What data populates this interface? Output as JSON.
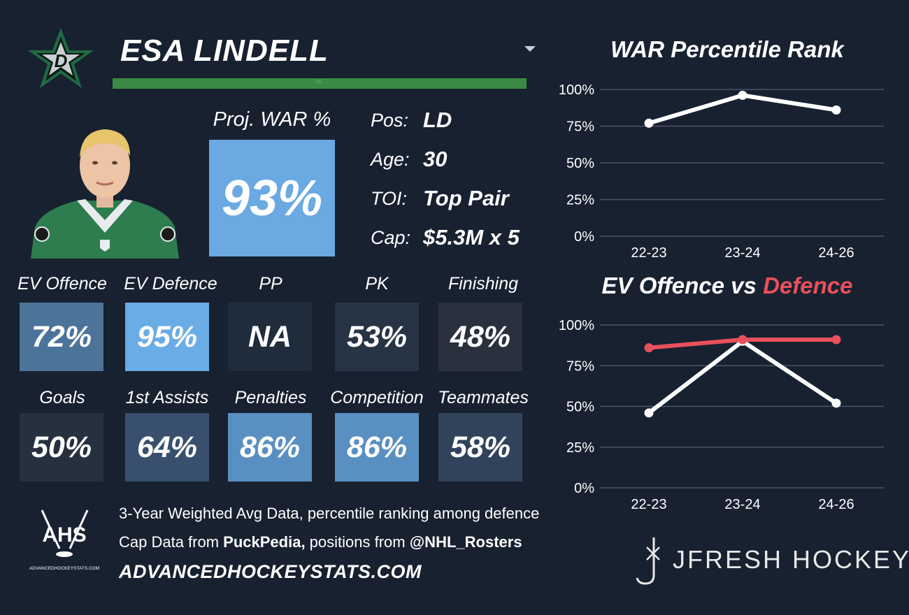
{
  "player": {
    "name": "ESA LINDELL",
    "bar_label": "SEL",
    "proj_war_label": "Proj. WAR %",
    "proj_war_value": "93%",
    "info": [
      {
        "label": "Pos:",
        "value": "LD"
      },
      {
        "label": "Age:",
        "value": "30"
      },
      {
        "label": "TOI:",
        "value": "Top Pair"
      },
      {
        "label": "Cap:",
        "value": "$5.3M x 5"
      }
    ]
  },
  "stats_row1": [
    {
      "label": "EV Offence",
      "value": "72%",
      "color": "#4c7399"
    },
    {
      "label": "EV Defence",
      "value": "95%",
      "color": "#6aace6"
    },
    {
      "label": "PP",
      "value": "NA",
      "color": "#1f2c3c"
    },
    {
      "label": "PK",
      "value": "53%",
      "color": "#273445"
    },
    {
      "label": "Finishing",
      "value": "48%",
      "color": "#2a303e"
    }
  ],
  "stats_row2": [
    {
      "label": "Goals",
      "value": "50%",
      "color": "#26303f"
    },
    {
      "label": "1st Assists",
      "value": "64%",
      "color": "#38506d"
    },
    {
      "label": "Penalties",
      "value": "86%",
      "color": "#5a8fc2"
    },
    {
      "label": "Competition",
      "value": "86%",
      "color": "#5a8fc2"
    },
    {
      "label": "Teammates",
      "value": "58%",
      "color": "#30435b"
    }
  ],
  "footer": {
    "line1": "3-Year Weighted Avg Data, percentile ranking among defence",
    "line2_prefix": "Cap Data from ",
    "line2_bold1": "PuckPedia,",
    "line2_mid": " positions from ",
    "line2_bold2": "@NHL_Rosters",
    "site": "ADVANCEDHOCKEYSTATS.COM",
    "ahs_text": "AHS",
    "ahs_small": "ADVANCEDHOCKEYSTATS.COM",
    "brand": "JFRESH HOCKEY"
  },
  "colors": {
    "background": "#182130",
    "name_bar": "#3a8a45",
    "war_box": "#6aa9e1",
    "defence_line": "#e8505b",
    "offence_line": "#ffffff",
    "grid": "#4a5568"
  },
  "chart_data": [
    {
      "type": "line",
      "title": "WAR Percentile Rank",
      "categories": [
        "22-23",
        "23-24",
        "24-26"
      ],
      "series": [
        {
          "values": [
            77,
            96,
            86
          ],
          "color": "#ffffff"
        }
      ],
      "ylim": [
        0,
        100
      ],
      "yticks": [
        "0%",
        "25%",
        "50%",
        "75%",
        "100%"
      ],
      "grid": true
    },
    {
      "type": "line",
      "title_part1": "EV Offence vs ",
      "title_part2": "Defence",
      "categories": [
        "22-23",
        "23-24",
        "24-26"
      ],
      "series": [
        {
          "values": [
            46,
            90,
            52
          ],
          "color": "#ffffff"
        },
        {
          "values": [
            86,
            91,
            91
          ],
          "color": "#e8505b"
        }
      ],
      "ylim": [
        0,
        100
      ],
      "yticks": [
        "0%",
        "25%",
        "50%",
        "75%",
        "100%"
      ],
      "grid": true
    }
  ]
}
